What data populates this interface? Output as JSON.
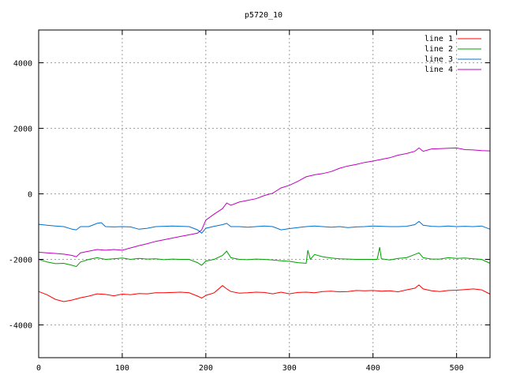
{
  "chart_data": {
    "type": "line",
    "title": "p5720_10",
    "xlabel": "",
    "ylabel": "",
    "xlim": [
      0,
      540
    ],
    "ylim": [
      -5000,
      5000
    ],
    "x_ticks": [
      0,
      100,
      200,
      300,
      400,
      500
    ],
    "y_ticks": [
      -4000,
      -2000,
      0,
      2000,
      4000
    ],
    "grid": true,
    "legend_position": "top-right",
    "series": [
      {
        "name": "line 1",
        "color": "#ff0000",
        "points": [
          [
            0,
            -2980
          ],
          [
            10,
            -3080
          ],
          [
            20,
            -3220
          ],
          [
            30,
            -3290
          ],
          [
            40,
            -3240
          ],
          [
            50,
            -3170
          ],
          [
            60,
            -3120
          ],
          [
            70,
            -3050
          ],
          [
            80,
            -3070
          ],
          [
            90,
            -3110
          ],
          [
            100,
            -3060
          ],
          [
            110,
            -3080
          ],
          [
            120,
            -3040
          ],
          [
            130,
            -3050
          ],
          [
            140,
            -3020
          ],
          [
            150,
            -3020
          ],
          [
            160,
            -3010
          ],
          [
            170,
            -3000
          ],
          [
            180,
            -3020
          ],
          [
            190,
            -3120
          ],
          [
            195,
            -3180
          ],
          [
            200,
            -3100
          ],
          [
            210,
            -3020
          ],
          [
            220,
            -2800
          ],
          [
            225,
            -2900
          ],
          [
            230,
            -2980
          ],
          [
            240,
            -3030
          ],
          [
            250,
            -3020
          ],
          [
            260,
            -3000
          ],
          [
            270,
            -3010
          ],
          [
            280,
            -3050
          ],
          [
            290,
            -3000
          ],
          [
            300,
            -3050
          ],
          [
            310,
            -3010
          ],
          [
            320,
            -3000
          ],
          [
            330,
            -3020
          ],
          [
            340,
            -2980
          ],
          [
            350,
            -2970
          ],
          [
            360,
            -2990
          ],
          [
            370,
            -2980
          ],
          [
            380,
            -2950
          ],
          [
            390,
            -2960
          ],
          [
            400,
            -2950
          ],
          [
            410,
            -2970
          ],
          [
            420,
            -2960
          ],
          [
            430,
            -2990
          ],
          [
            440,
            -2930
          ],
          [
            450,
            -2880
          ],
          [
            455,
            -2780
          ],
          [
            460,
            -2900
          ],
          [
            470,
            -2960
          ],
          [
            480,
            -2980
          ],
          [
            490,
            -2950
          ],
          [
            500,
            -2940
          ],
          [
            510,
            -2920
          ],
          [
            520,
            -2900
          ],
          [
            530,
            -2930
          ],
          [
            540,
            -3060
          ]
        ]
      },
      {
        "name": "line 2",
        "color": "#00a000",
        "points": [
          [
            0,
            -2000
          ],
          [
            10,
            -2080
          ],
          [
            20,
            -2130
          ],
          [
            30,
            -2120
          ],
          [
            40,
            -2180
          ],
          [
            45,
            -2220
          ],
          [
            50,
            -2080
          ],
          [
            60,
            -2000
          ],
          [
            70,
            -1950
          ],
          [
            80,
            -2000
          ],
          [
            90,
            -1980
          ],
          [
            100,
            -1960
          ],
          [
            110,
            -2000
          ],
          [
            120,
            -1970
          ],
          [
            130,
            -1990
          ],
          [
            140,
            -1980
          ],
          [
            150,
            -2010
          ],
          [
            160,
            -1990
          ],
          [
            170,
            -2000
          ],
          [
            180,
            -2000
          ],
          [
            190,
            -2100
          ],
          [
            195,
            -2180
          ],
          [
            200,
            -2050
          ],
          [
            210,
            -2000
          ],
          [
            220,
            -1880
          ],
          [
            225,
            -1750
          ],
          [
            230,
            -1950
          ],
          [
            240,
            -2000
          ],
          [
            250,
            -2010
          ],
          [
            260,
            -1990
          ],
          [
            270,
            -2000
          ],
          [
            280,
            -2020
          ],
          [
            290,
            -2040
          ],
          [
            300,
            -2060
          ],
          [
            310,
            -2100
          ],
          [
            320,
            -2120
          ],
          [
            322,
            -1720
          ],
          [
            325,
            -2000
          ],
          [
            330,
            -1850
          ],
          [
            340,
            -1920
          ],
          [
            350,
            -1960
          ],
          [
            360,
            -1980
          ],
          [
            370,
            -1990
          ],
          [
            380,
            -2000
          ],
          [
            390,
            -2000
          ],
          [
            400,
            -2000
          ],
          [
            405,
            -2000
          ],
          [
            408,
            -1630
          ],
          [
            410,
            -1980
          ],
          [
            420,
            -2020
          ],
          [
            430,
            -1970
          ],
          [
            440,
            -1950
          ],
          [
            450,
            -1850
          ],
          [
            455,
            -1800
          ],
          [
            460,
            -1950
          ],
          [
            470,
            -1990
          ],
          [
            480,
            -1990
          ],
          [
            490,
            -1950
          ],
          [
            500,
            -1970
          ],
          [
            510,
            -1960
          ],
          [
            520,
            -1980
          ],
          [
            530,
            -2000
          ],
          [
            540,
            -2120
          ]
        ]
      },
      {
        "name": "line 3",
        "color": "#0070d0",
        "points": [
          [
            0,
            -930
          ],
          [
            10,
            -960
          ],
          [
            20,
            -980
          ],
          [
            30,
            -1000
          ],
          [
            40,
            -1080
          ],
          [
            45,
            -1100
          ],
          [
            50,
            -1000
          ],
          [
            60,
            -1000
          ],
          [
            70,
            -900
          ],
          [
            75,
            -880
          ],
          [
            80,
            -1000
          ],
          [
            90,
            -1010
          ],
          [
            100,
            -1000
          ],
          [
            110,
            -1010
          ],
          [
            120,
            -1080
          ],
          [
            130,
            -1050
          ],
          [
            140,
            -1000
          ],
          [
            150,
            -990
          ],
          [
            160,
            -980
          ],
          [
            170,
            -990
          ],
          [
            180,
            -1000
          ],
          [
            190,
            -1100
          ],
          [
            195,
            -1200
          ],
          [
            200,
            -1050
          ],
          [
            210,
            -990
          ],
          [
            220,
            -940
          ],
          [
            225,
            -900
          ],
          [
            230,
            -1000
          ],
          [
            240,
            -1000
          ],
          [
            250,
            -1020
          ],
          [
            260,
            -1000
          ],
          [
            270,
            -980
          ],
          [
            280,
            -1000
          ],
          [
            290,
            -1100
          ],
          [
            300,
            -1060
          ],
          [
            310,
            -1030
          ],
          [
            320,
            -1000
          ],
          [
            330,
            -980
          ],
          [
            340,
            -1000
          ],
          [
            350,
            -1020
          ],
          [
            360,
            -1000
          ],
          [
            370,
            -1030
          ],
          [
            380,
            -1010
          ],
          [
            390,
            -1000
          ],
          [
            400,
            -980
          ],
          [
            410,
            -990
          ],
          [
            420,
            -1000
          ],
          [
            430,
            -1000
          ],
          [
            440,
            -990
          ],
          [
            450,
            -940
          ],
          [
            455,
            -840
          ],
          [
            460,
            -960
          ],
          [
            470,
            -990
          ],
          [
            480,
            -1000
          ],
          [
            490,
            -980
          ],
          [
            500,
            -1000
          ],
          [
            510,
            -990
          ],
          [
            520,
            -1000
          ],
          [
            530,
            -980
          ],
          [
            540,
            -1080
          ]
        ]
      },
      {
        "name": "line 4",
        "color": "#c000c0",
        "points": [
          [
            0,
            -1780
          ],
          [
            10,
            -1800
          ],
          [
            20,
            -1820
          ],
          [
            30,
            -1840
          ],
          [
            40,
            -1880
          ],
          [
            45,
            -1920
          ],
          [
            50,
            -1800
          ],
          [
            60,
            -1750
          ],
          [
            70,
            -1700
          ],
          [
            80,
            -1720
          ],
          [
            90,
            -1700
          ],
          [
            100,
            -1720
          ],
          [
            110,
            -1650
          ],
          [
            120,
            -1580
          ],
          [
            130,
            -1520
          ],
          [
            140,
            -1450
          ],
          [
            150,
            -1400
          ],
          [
            160,
            -1350
          ],
          [
            170,
            -1300
          ],
          [
            180,
            -1250
          ],
          [
            190,
            -1200
          ],
          [
            195,
            -1100
          ],
          [
            200,
            -800
          ],
          [
            210,
            -620
          ],
          [
            220,
            -450
          ],
          [
            225,
            -280
          ],
          [
            230,
            -350
          ],
          [
            240,
            -250
          ],
          [
            250,
            -200
          ],
          [
            260,
            -150
          ],
          [
            270,
            -50
          ],
          [
            280,
            20
          ],
          [
            290,
            180
          ],
          [
            300,
            260
          ],
          [
            310,
            380
          ],
          [
            320,
            520
          ],
          [
            330,
            580
          ],
          [
            340,
            620
          ],
          [
            350,
            680
          ],
          [
            360,
            780
          ],
          [
            370,
            850
          ],
          [
            380,
            900
          ],
          [
            390,
            960
          ],
          [
            400,
            1000
          ],
          [
            410,
            1050
          ],
          [
            420,
            1100
          ],
          [
            430,
            1180
          ],
          [
            440,
            1230
          ],
          [
            450,
            1300
          ],
          [
            455,
            1400
          ],
          [
            460,
            1300
          ],
          [
            470,
            1370
          ],
          [
            480,
            1380
          ],
          [
            490,
            1390
          ],
          [
            500,
            1400
          ],
          [
            510,
            1350
          ],
          [
            520,
            1340
          ],
          [
            530,
            1320
          ],
          [
            540,
            1310
          ]
        ]
      }
    ]
  }
}
